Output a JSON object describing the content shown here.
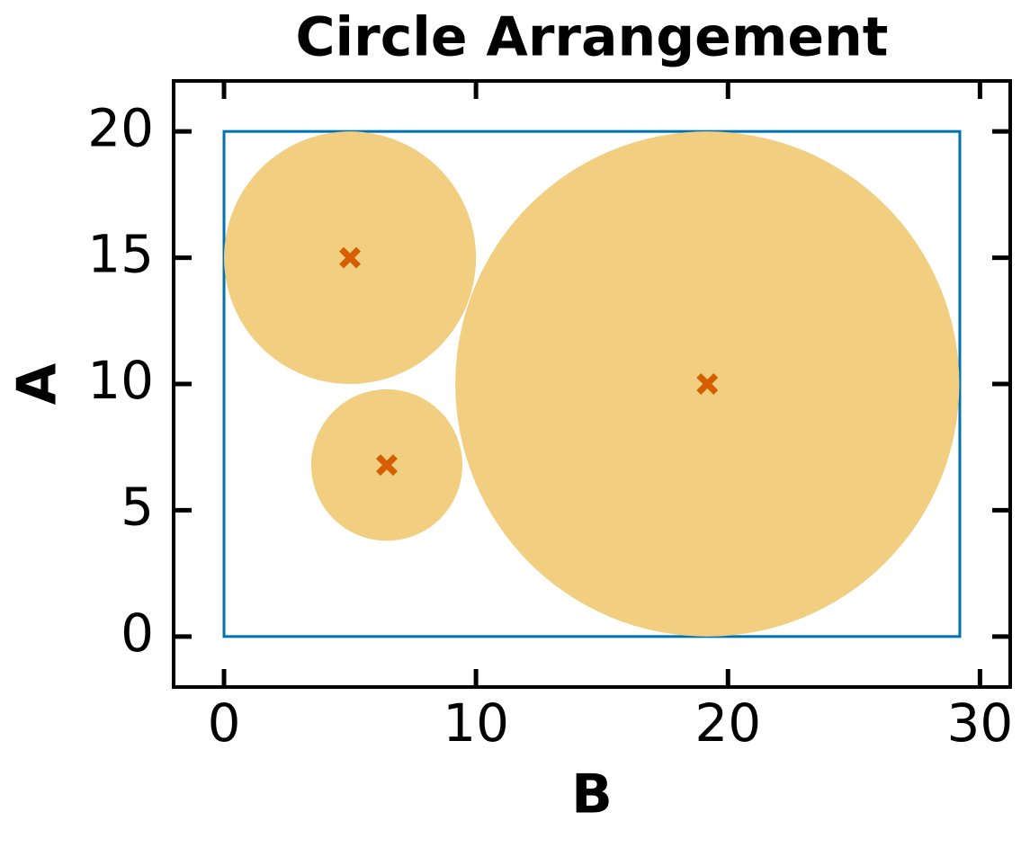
{
  "chart_data": {
    "type": "circles",
    "title": "Circle Arrangement",
    "x_label": "B",
    "y_label": "A",
    "x": [
      5,
      6.46,
      19.18
    ],
    "values": [
      15,
      6.79,
      10
    ],
    "radius": [
      5,
      3,
      10
    ],
    "color": "#f2ce80",
    "marker_color": "#d55e00",
    "boundary": {
      "width": 29.2,
      "height": 20,
      "color": "#0072b2"
    },
    "xlim": [
      -2,
      31.2
    ],
    "ylim": [
      -2,
      22
    ],
    "xticks": [
      0,
      10,
      20,
      30
    ],
    "yticks": [
      0,
      5,
      10,
      15,
      20
    ]
  }
}
